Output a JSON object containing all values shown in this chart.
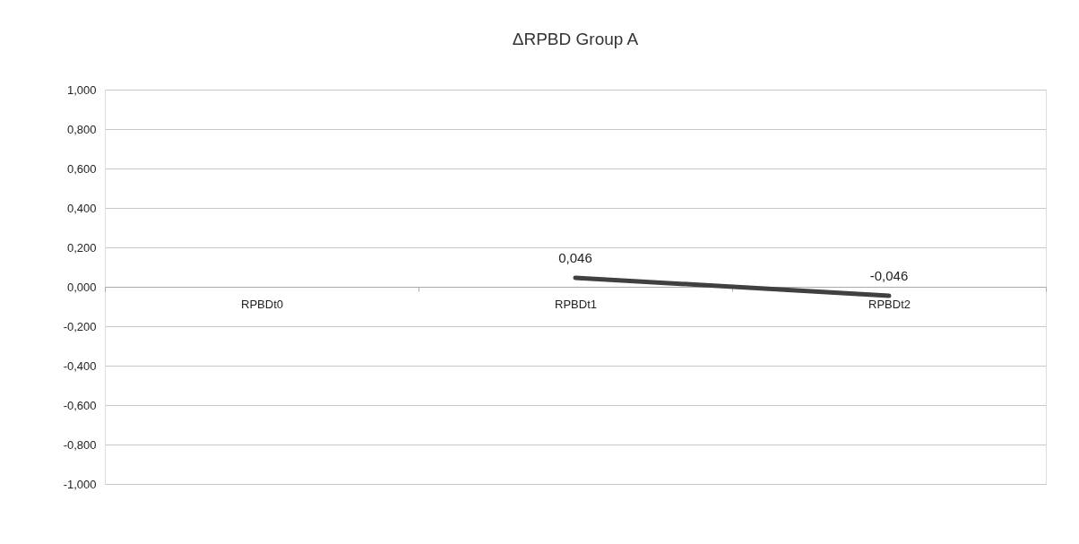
{
  "chart_data": {
    "type": "line",
    "title": "ΔRPBD Group A",
    "categories": [
      "RPBDt0",
      "RPBDt1",
      "RPBDt2"
    ],
    "series": [
      {
        "color": "#404040",
        "values": [
          null,
          0.046,
          -0.046
        ],
        "value_labels": [
          null,
          "0,046",
          "-0,046"
        ]
      }
    ],
    "ylim": [
      -1.0,
      1.0
    ],
    "yticks": [
      {
        "value": -1.0,
        "label": "-1,000"
      },
      {
        "value": -0.8,
        "label": "-0,800"
      },
      {
        "value": -0.6,
        "label": "-0,600"
      },
      {
        "value": -0.4,
        "label": "-0,400"
      },
      {
        "value": -0.2,
        "label": "-0,200"
      },
      {
        "value": 0.0,
        "label": "0,000"
      },
      {
        "value": 0.2,
        "label": "0,200"
      },
      {
        "value": 0.4,
        "label": "0,400"
      },
      {
        "value": 0.6,
        "label": "0,600"
      },
      {
        "value": 0.8,
        "label": "0,800"
      },
      {
        "value": 1.0,
        "label": "1,000"
      }
    ],
    "grid": "y",
    "marker": "none",
    "line_style": "solid"
  }
}
